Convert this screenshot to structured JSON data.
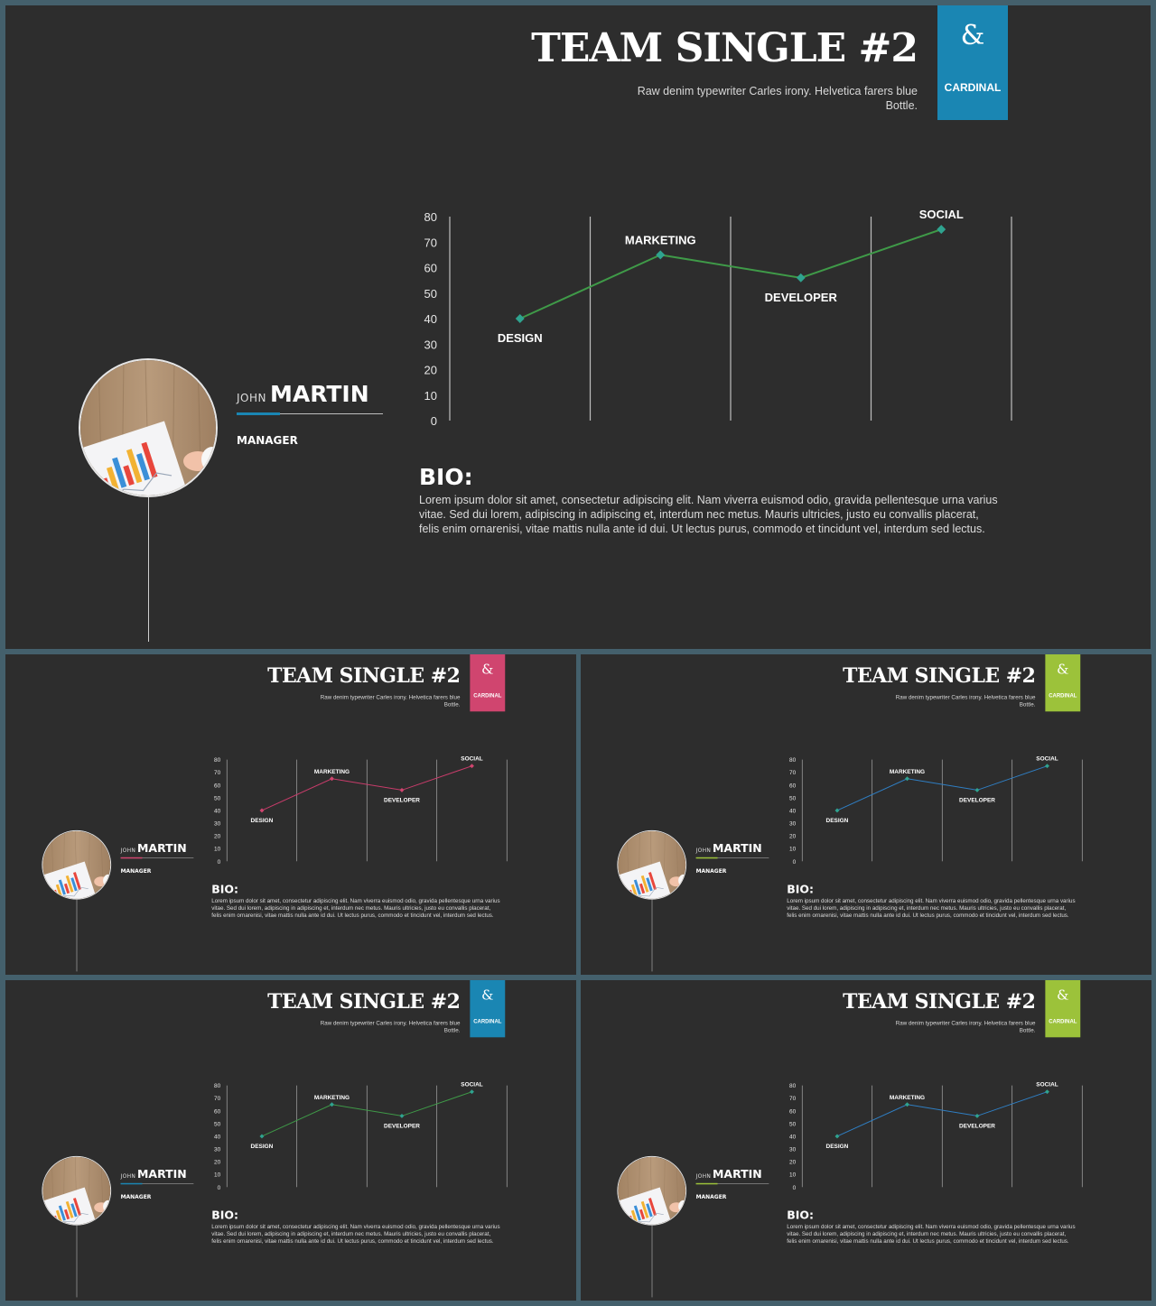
{
  "slides": [
    {
      "title": "TEAM SINGLE #2",
      "subtitle": "Raw denim typewriter Carles irony. Helvetica farers blue Bottle.",
      "brand": {
        "symbol": "&",
        "name": "CARDINAL"
      },
      "accent_color": "#1a86b3",
      "line_color": "#3f9a48",
      "point_color": "#2fa38f",
      "profile": {
        "first_name": "JOHN",
        "last_name": "MARTIN",
        "role": "MANAGER",
        "name_accent_color": "#1a86b3"
      },
      "bio": {
        "heading": "BIO:",
        "text": "Lorem ipsum dolor sit amet, consectetur adipiscing elit. Nam viverra euismod odio, gravida pellentesque urna varius vitae. Sed dui lorem, adipiscing in adipiscing et, interdum nec metus. Mauris ultricies, justo eu convallis placerat, felis enim ornarenisi, vitae mattis nulla ante id dui. Ut lectus purus, commodo et tincidunt vel, interdum sed lectus."
      }
    },
    {
      "title": "TEAM SINGLE #2",
      "subtitle": "Raw denim typewriter Carles irony. Helvetica farers blue Bottle.",
      "brand": {
        "symbol": "&",
        "name": "CARDINAL"
      },
      "accent_color": "#d0456f",
      "line_color": "#c93c6b",
      "point_color": "#d0456f",
      "profile": {
        "first_name": "JOHN",
        "last_name": "MARTIN",
        "role": "MANAGER",
        "name_accent_color": "#d0456f"
      },
      "bio": {
        "heading": "BIO:",
        "text": "Lorem ipsum dolor sit amet, consectetur adipiscing elit. Nam viverra euismod odio, gravida pellentesque urna varius vitae. Sed dui lorem, adipiscing in adipiscing et, interdum nec metus. Mauris ultricies, justo eu convallis placerat, felis enim ornarenisi, vitae mattis nulla ante id dui. Ut lectus purus, commodo et tincidunt vel, interdum sed lectus."
      }
    },
    {
      "title": "TEAM SINGLE #2",
      "subtitle": "Raw denim typewriter Carles irony. Helvetica farers blue Bottle.",
      "brand": {
        "symbol": "&",
        "name": "CARDINAL"
      },
      "accent_color": "#9cc23a",
      "line_color": "#2f7fc4",
      "point_color": "#2fa38f",
      "profile": {
        "first_name": "JOHN",
        "last_name": "MARTIN",
        "role": "MANAGER",
        "name_accent_color": "#9cc23a"
      },
      "bio": {
        "heading": "BIO:",
        "text": "Lorem ipsum dolor sit amet, consectetur adipiscing elit. Nam viverra euismod odio, gravida pellentesque urna varius vitae. Sed dui lorem, adipiscing in adipiscing et, interdum nec metus. Mauris ultricies, justo eu convallis placerat, felis enim ornarenisi, vitae mattis nulla ante id dui. Ut lectus purus, commodo et tincidunt vel, interdum sed lectus."
      }
    },
    {
      "title": "TEAM SINGLE #2",
      "subtitle": "Raw denim typewriter Carles irony. Helvetica farers blue Bottle.",
      "brand": {
        "symbol": "&",
        "name": "CARDINAL"
      },
      "accent_color": "#1a86b3",
      "line_color": "#3f9a48",
      "point_color": "#2fa38f",
      "profile": {
        "first_name": "JOHN",
        "last_name": "MARTIN",
        "role": "MANAGER",
        "name_accent_color": "#1a86b3"
      },
      "bio": {
        "heading": "BIO:",
        "text": "Lorem ipsum dolor sit amet, consectetur adipiscing elit. Nam viverra euismod odio, gravida pellentesque urna varius vitae. Sed dui lorem, adipiscing in adipiscing et, interdum nec metus. Mauris ultricies, justo eu convallis placerat, felis enim ornarenisi, vitae mattis nulla ante id dui. Ut lectus purus, commodo et tincidunt vel, interdum sed lectus."
      }
    },
    {
      "title": "TEAM SINGLE #2",
      "subtitle": "Raw denim typewriter Carles irony. Helvetica farers blue Bottle.",
      "brand": {
        "symbol": "&",
        "name": "CARDINAL"
      },
      "accent_color": "#9cc23a",
      "line_color": "#2f7fc4",
      "point_color": "#2fa38f",
      "profile": {
        "first_name": "JOHN",
        "last_name": "MARTIN",
        "role": "MANAGER",
        "name_accent_color": "#9cc23a"
      },
      "bio": {
        "heading": "BIO:",
        "text": "Lorem ipsum dolor sit amet, consectetur adipiscing elit. Nam viverra euismod odio, gravida pellentesque urna varius vitae. Sed dui lorem, adipiscing in adipiscing et, interdum nec metus. Mauris ultricies, justo eu convallis placerat, felis enim ornarenisi, vitae mattis nulla ante id dui. Ut lectus purus, commodo et tincidunt vel, interdum sed lectus."
      }
    }
  ],
  "chart_data": {
    "type": "line",
    "categories": [
      "DESIGN",
      "MARKETING",
      "DEVELOPER",
      "SOCIAL"
    ],
    "values": [
      40,
      65,
      56,
      75
    ],
    "y_ticks": [
      "0",
      "10",
      "20",
      "30",
      "40",
      "50",
      "60",
      "70",
      "80"
    ],
    "ylim": [
      0,
      80
    ],
    "grid": "vertical",
    "legend": "none",
    "data_label_position": [
      "below",
      "above",
      "below",
      "above"
    ]
  },
  "colors": {
    "page_background": "#44606c",
    "slide_background": "#2d2d2d"
  }
}
